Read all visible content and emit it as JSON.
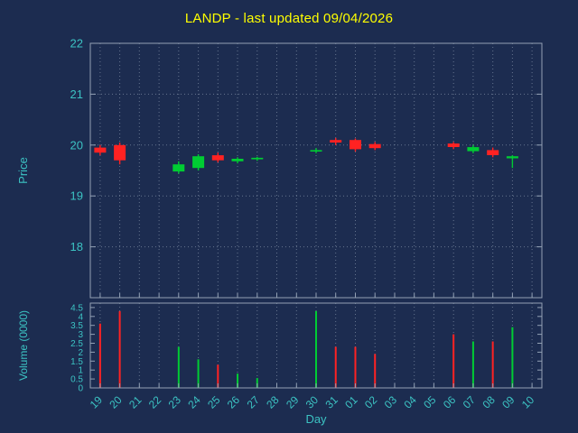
{
  "title": "LANDP - last updated 09/04/2026",
  "colors": {
    "background": "#1c2c50",
    "title": "#ffff00",
    "axis_text": "#3cc3c3",
    "frame": "#93a1b5",
    "grid": "#7e8ca3",
    "up": "#00cc33",
    "down": "#ff2222"
  },
  "chart_data": {
    "type": "candlestick",
    "title": "LANDP - last updated 09/04/2026",
    "xlabel": "Day",
    "legend": "none",
    "grid": "dotted",
    "categories": [
      "19",
      "20",
      "21",
      "22",
      "23",
      "24",
      "25",
      "26",
      "27",
      "28",
      "29",
      "30",
      "31",
      "01",
      "02",
      "03",
      "04",
      "05",
      "06",
      "07",
      "08",
      "09",
      "10"
    ],
    "price_axis": {
      "label": "Price",
      "ticks": [
        "18",
        "19",
        "20",
        "21",
        "22"
      ],
      "tick_values": [
        18,
        19,
        20,
        21,
        22
      ],
      "range": [
        17,
        22
      ]
    },
    "volume_axis": {
      "label": "Volume (0000)",
      "ticks": [
        "0",
        "0.5",
        "1",
        "1.5",
        "2",
        "2.5",
        "3",
        "3.5",
        "4",
        "4.5"
      ],
      "tick_values": [
        0,
        0.5,
        1,
        1.5,
        2,
        2.5,
        3,
        3.5,
        4,
        4.5
      ],
      "range": [
        0,
        4.75
      ]
    },
    "candles": [
      {
        "day": "19",
        "open": 19.95,
        "high": 20.0,
        "low": 19.8,
        "close": 19.85,
        "volume": 3.6
      },
      {
        "day": "20",
        "open": 20.0,
        "high": 20.05,
        "low": 19.62,
        "close": 19.7,
        "volume": 4.3
      },
      {
        "day": "23",
        "open": 19.48,
        "high": 19.68,
        "low": 19.44,
        "close": 19.62,
        "volume": 2.3
      },
      {
        "day": "24",
        "open": 19.55,
        "high": 19.82,
        "low": 19.5,
        "close": 19.78,
        "volume": 1.6
      },
      {
        "day": "25",
        "open": 19.8,
        "high": 19.85,
        "low": 19.66,
        "close": 19.7,
        "volume": 1.3
      },
      {
        "day": "26",
        "open": 19.68,
        "high": 19.76,
        "low": 19.64,
        "close": 19.73,
        "volume": 0.8
      },
      {
        "day": "27",
        "open": 19.72,
        "high": 19.77,
        "low": 19.69,
        "close": 19.75,
        "volume": 0.55
      },
      {
        "day": "30",
        "open": 19.88,
        "high": 19.94,
        "low": 19.84,
        "close": 19.9,
        "volume": 4.3
      },
      {
        "day": "31",
        "open": 20.1,
        "high": 20.14,
        "low": 20.0,
        "close": 20.05,
        "volume": 2.3
      },
      {
        "day": "01",
        "open": 20.1,
        "high": 20.13,
        "low": 19.87,
        "close": 19.92,
        "volume": 2.3
      },
      {
        "day": "02",
        "open": 20.02,
        "high": 20.06,
        "low": 19.9,
        "close": 19.94,
        "volume": 1.9
      },
      {
        "day": "06",
        "open": 20.03,
        "high": 20.06,
        "low": 19.92,
        "close": 19.96,
        "volume": 3.0
      },
      {
        "day": "07",
        "open": 19.88,
        "high": 20.0,
        "low": 19.84,
        "close": 19.96,
        "volume": 2.6
      },
      {
        "day": "08",
        "open": 19.9,
        "high": 19.95,
        "low": 19.76,
        "close": 19.8,
        "volume": 2.6
      },
      {
        "day": "09",
        "open": 19.74,
        "high": 19.8,
        "low": 19.55,
        "close": 19.78,
        "volume": 3.4
      }
    ]
  }
}
